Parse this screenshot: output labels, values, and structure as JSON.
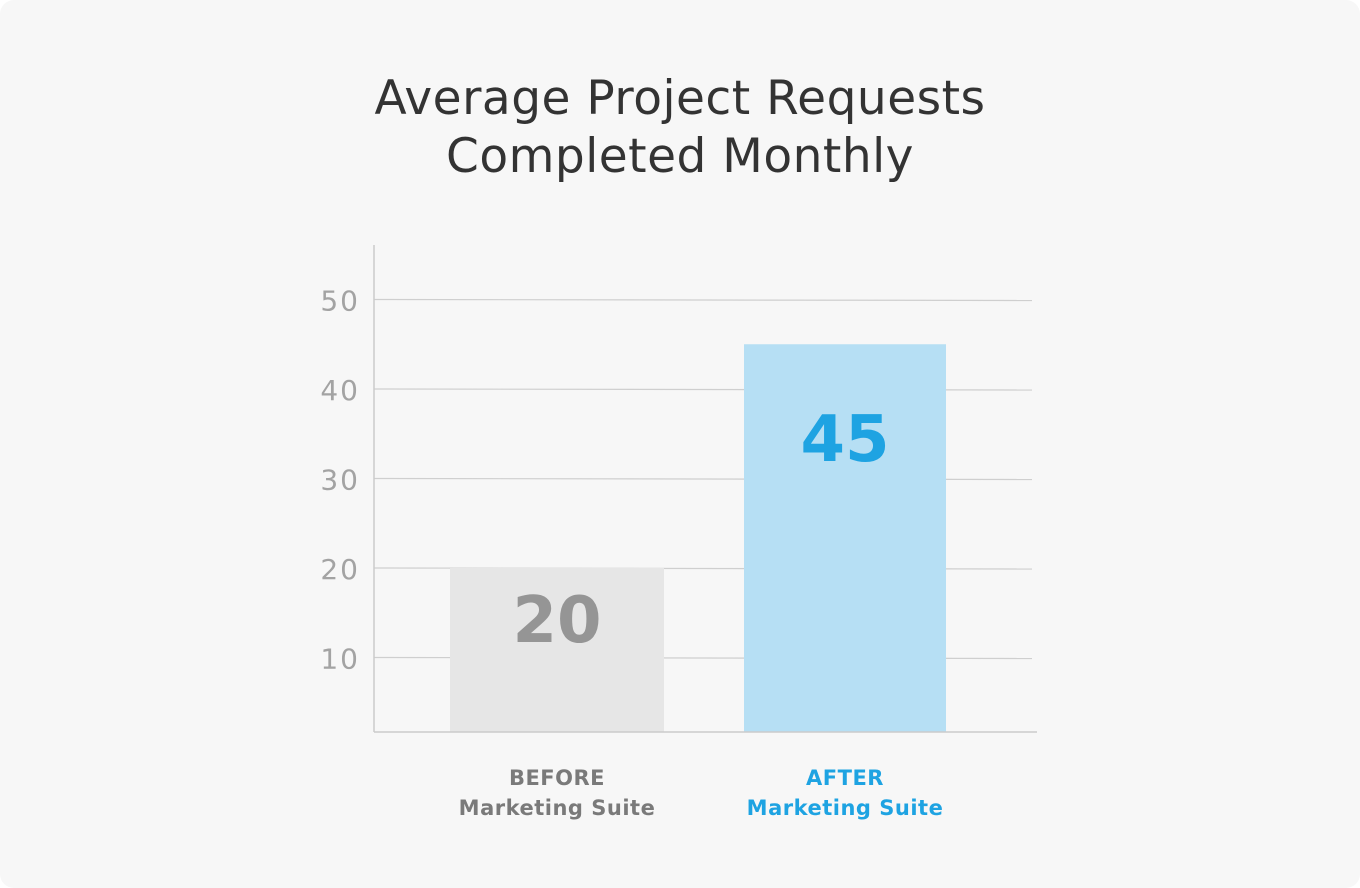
{
  "chart_data": {
    "type": "bar",
    "title": [
      "Average Project Requests",
      "Completed Monthly"
    ],
    "categories": [
      {
        "line1": "BEFORE",
        "line2": "Marketing Suite"
      },
      {
        "line1": "AFTER",
        "line2": "Marketing Suite"
      }
    ],
    "values": [
      20,
      45
    ],
    "data_labels": [
      "20",
      "45"
    ],
    "yticks": [
      10,
      20,
      30,
      40,
      50
    ],
    "ytick_labels": [
      "10",
      "20",
      "30",
      "40",
      "50"
    ],
    "ylim": [
      0,
      55
    ],
    "grid": true,
    "xlabel": "",
    "ylabel": "",
    "colors": {
      "bars": [
        "#e6e6e6",
        "#b6dff4"
      ],
      "labels": [
        "#959595",
        "#1ea3e2"
      ],
      "category_text": [
        "#7a7a7a",
        "#1ea3e2"
      ]
    }
  }
}
